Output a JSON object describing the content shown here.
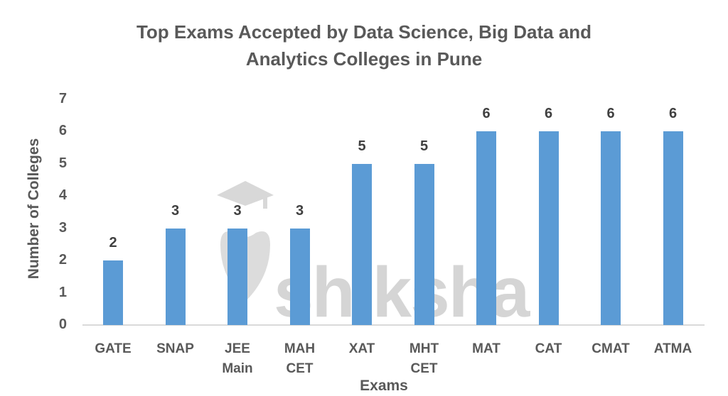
{
  "chart_data": {
    "type": "bar",
    "title": "Top Exams Accepted by Data Science, Big Data and Analytics Colleges in Pune",
    "title_lines": [
      "Top Exams Accepted by Data Science, Big Data and",
      "Analytics Colleges in Pune"
    ],
    "xlabel": "Exams",
    "ylabel": "Number of Colleges",
    "categories": [
      "GATE",
      "SNAP",
      "JEE Main",
      "MAH CET",
      "XAT",
      "MHT CET",
      "MAT",
      "CAT",
      "CMAT",
      "ATMA"
    ],
    "category_lines": [
      [
        "GATE"
      ],
      [
        "SNAP"
      ],
      [
        "JEE",
        "Main"
      ],
      [
        "MAH",
        "CET"
      ],
      [
        "XAT"
      ],
      [
        "MHT",
        "CET"
      ],
      [
        "MAT"
      ],
      [
        "CAT"
      ],
      [
        "CMAT"
      ],
      [
        "ATMA"
      ]
    ],
    "values": [
      2,
      3,
      3,
      3,
      5,
      5,
      6,
      6,
      6,
      6
    ],
    "ylim": [
      0,
      7
    ],
    "yticks": [
      "0",
      "1",
      "2",
      "3",
      "4",
      "5",
      "6",
      "7"
    ],
    "grid": false,
    "legend": null,
    "data_labels": true,
    "bar_color": "#5b9bd5"
  },
  "watermark": {
    "text": "shiksha"
  }
}
